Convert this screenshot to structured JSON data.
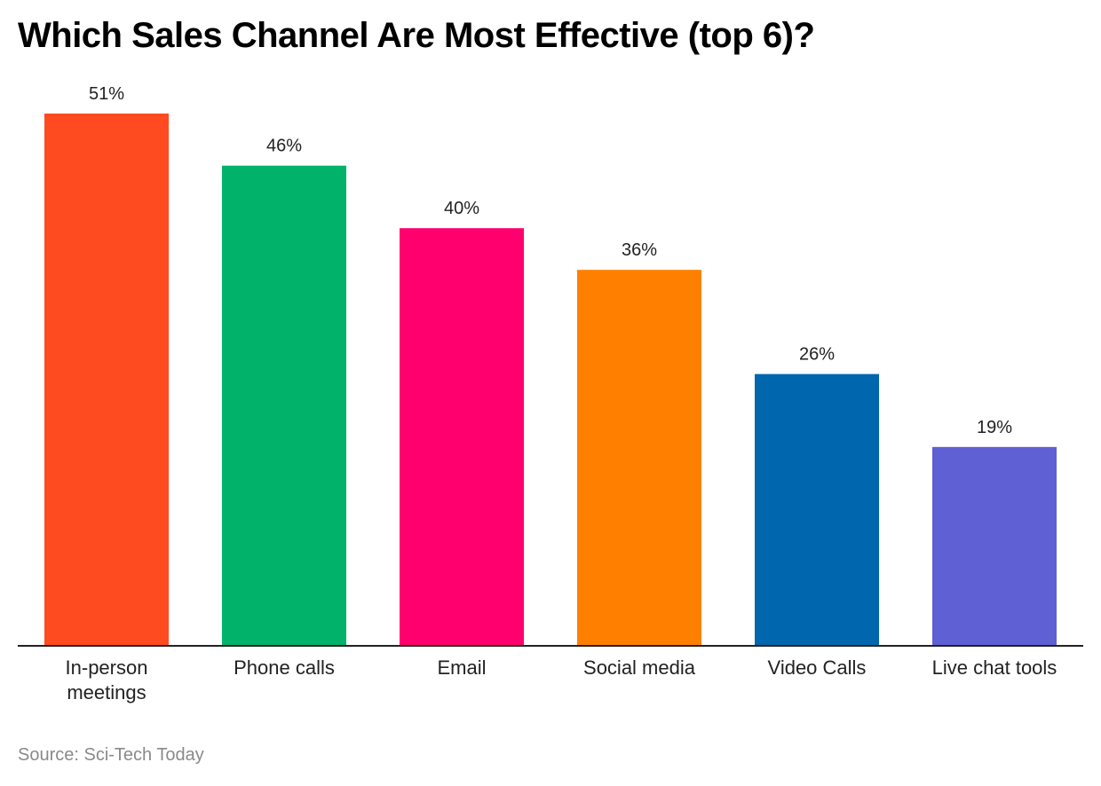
{
  "chart_data": {
    "type": "bar",
    "title": "Which Sales Channel Are Most Effective (top 6)?",
    "xlabel": "",
    "ylabel": "",
    "ylim": [
      0,
      51
    ],
    "grid": false,
    "legend": "none",
    "categories": [
      "In-person meetings",
      "Phone calls",
      "Email",
      "Social media",
      "Video Calls",
      "Live chat tools"
    ],
    "category_lines": [
      [
        "In-person",
        "meetings"
      ],
      [
        "Phone calls"
      ],
      [
        "Email"
      ],
      [
        "Social media"
      ],
      [
        "Video Calls"
      ],
      [
        "Live chat tools"
      ]
    ],
    "values": [
      51,
      46,
      40,
      36,
      26,
      19
    ],
    "value_labels": [
      "51%",
      "46%",
      "40%",
      "36%",
      "26%",
      "19%"
    ],
    "colors": [
      "#ff4b1f",
      "#00b26a",
      "#ff006e",
      "#ff8000",
      "#0066ad",
      "#5e60d4"
    ]
  },
  "source": "Source: Sci-Tech Today"
}
